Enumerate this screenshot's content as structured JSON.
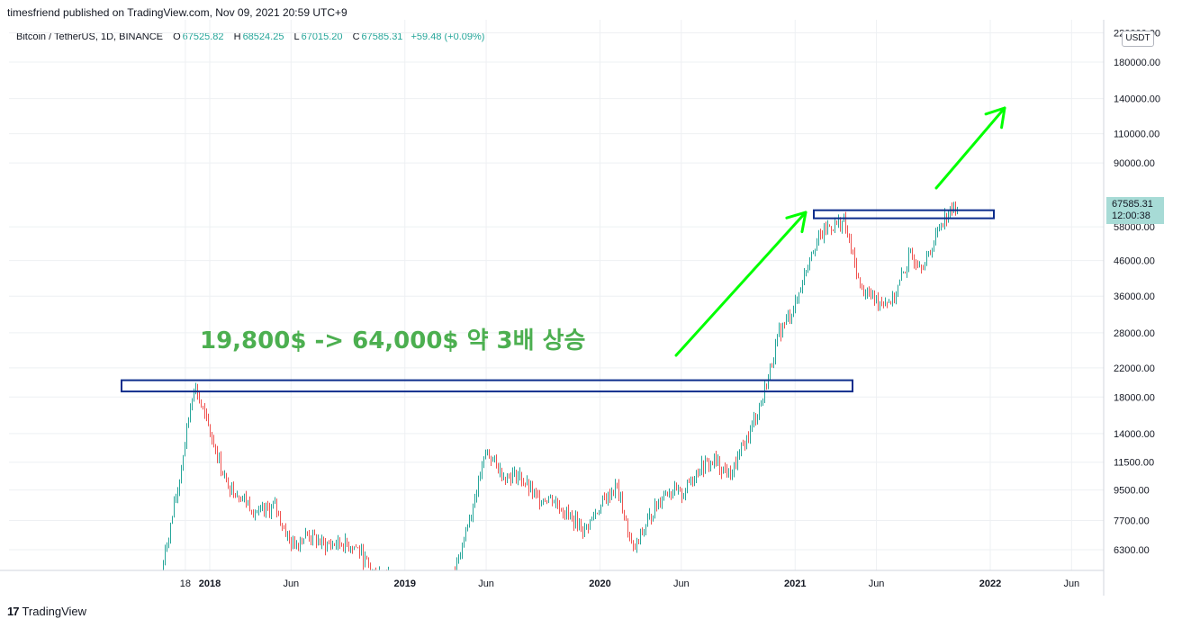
{
  "publisher": "timesfriend published on TradingView.com, Nov 09, 2021 20:59 UTC+9",
  "legend": {
    "symbol": "Bitcoin / TetherUS, 1D, BINANCE",
    "open_label": "O",
    "open": "67525.82",
    "high_label": "H",
    "high": "68524.25",
    "low_label": "L",
    "low": "67015.20",
    "close_label": "C",
    "close": "67585.31",
    "change": "+59.48 (+0.09%)"
  },
  "currency": "USDT",
  "price_tag": {
    "price": "67585.31",
    "countdown": "12:00:38"
  },
  "annotation": "19,800$ -> 64,000$ 약 3배 상승",
  "footer": {
    "brand": "TradingView",
    "logo": "17"
  },
  "colors": {
    "up": "#26a69a",
    "down": "#ef5350",
    "arrow": "#00ff00",
    "box": "#0d2d8c",
    "annotation": "#4caf50",
    "grid": "#eef0f3"
  },
  "chart_data": {
    "type": "candlestick",
    "y_scale": "log",
    "ylim": [
      5400,
      220000
    ],
    "y_ticks": [
      "6300.00",
      "7700.00",
      "9500.00",
      "11500.00",
      "14000.00",
      "18000.00",
      "22000.00",
      "28000.00",
      "36000.00",
      "46000.00",
      "58000.00",
      "90000.00",
      "110000.00",
      "140000.00",
      "180000.00",
      "220000.00"
    ],
    "x_ticks": [
      "18",
      "2018",
      "Jun",
      "2019",
      "Jun",
      "2020",
      "Jun",
      "2021",
      "Jun",
      "2022",
      "Jun"
    ],
    "series": [
      {
        "x": [
          "2017-10",
          "2017-11",
          "2017-12",
          "2018-01",
          "2018-02",
          "2018-03",
          "2018-04",
          "2018-05",
          "2018-06",
          "2018-07",
          "2018-08",
          "2018-09",
          "2018-10",
          "2018-11",
          "2019-04",
          "2019-05",
          "2019-06",
          "2019-07",
          "2019-08",
          "2019-09",
          "2019-10",
          "2019-11",
          "2019-12",
          "2020-01",
          "2020-02",
          "2020-03",
          "2020-04",
          "2020-05",
          "2020-06",
          "2020-07",
          "2020-08",
          "2020-09",
          "2020-10",
          "2020-11",
          "2020-12",
          "2021-01",
          "2021-02",
          "2021-03",
          "2021-04",
          "2021-05",
          "2021-06",
          "2021-07",
          "2021-08",
          "2021-09",
          "2021-10",
          "2021-11"
        ],
        "y": [
          5400,
          9500,
          19800,
          14000,
          10000,
          9000,
          8000,
          8500,
          6500,
          7000,
          6500,
          6600,
          6400,
          5400,
          5400,
          8000,
          12500,
          10500,
          10500,
          9000,
          9000,
          8000,
          7200,
          8500,
          9800,
          6200,
          7800,
          9500,
          9200,
          11000,
          11600,
          10500,
          13500,
          18000,
          28000,
          34000,
          50000,
          58000,
          60000,
          38000,
          35000,
          35000,
          47000,
          45000,
          61000,
          67585
        ]
      }
    ],
    "boxes": [
      {
        "price_low": 18700,
        "price_high": 20200,
        "from": "2017-10",
        "to": "2021-05"
      },
      {
        "price_low": 61500,
        "price_high": 65000,
        "from": "2021-02",
        "to": "2021-11"
      }
    ]
  }
}
